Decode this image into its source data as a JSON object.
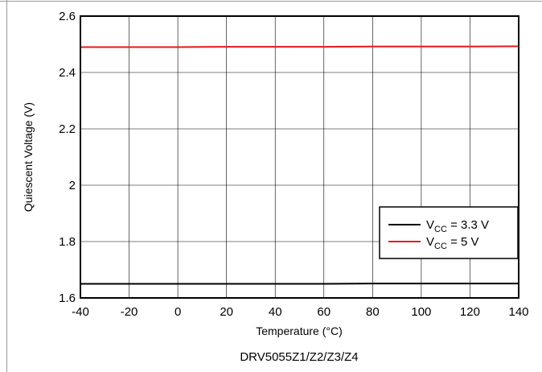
{
  "chart_data": {
    "type": "line",
    "xlabel": "Temperature (°C)",
    "ylabel": "Quiescent Voltage (V)",
    "caption": "DRV5055Z1/Z2/Z3/Z4",
    "xlim": [
      -40,
      140
    ],
    "ylim": [
      1.6,
      2.6
    ],
    "x_ticks": [
      "-40",
      "-20",
      "0",
      "20",
      "40",
      "60",
      "80",
      "100",
      "120",
      "140"
    ],
    "y_ticks": [
      "1.6",
      "1.8",
      "2",
      "2.2",
      "2.4",
      "2.6"
    ],
    "grid": true,
    "legend_position": "lower-right",
    "series": [
      {
        "name": "VCC = 3.3 V",
        "legend_main": "V",
        "legend_sub": "CC",
        "legend_rest": " = 3.3 V",
        "color": "#000000",
        "x": [
          -40,
          -20,
          0,
          20,
          40,
          60,
          80,
          100,
          120,
          140
        ],
        "y": [
          1.65,
          1.65,
          1.65,
          1.65,
          1.65,
          1.65,
          1.651,
          1.651,
          1.651,
          1.651
        ]
      },
      {
        "name": "VCC = 5 V",
        "legend_main": "V",
        "legend_sub": "CC",
        "legend_rest": " = 5 V",
        "color": "#e8191c",
        "x": [
          -40,
          -20,
          0,
          20,
          40,
          60,
          80,
          100,
          120,
          140
        ],
        "y": [
          2.49,
          2.49,
          2.49,
          2.491,
          2.491,
          2.491,
          2.492,
          2.492,
          2.492,
          2.493
        ]
      }
    ]
  }
}
